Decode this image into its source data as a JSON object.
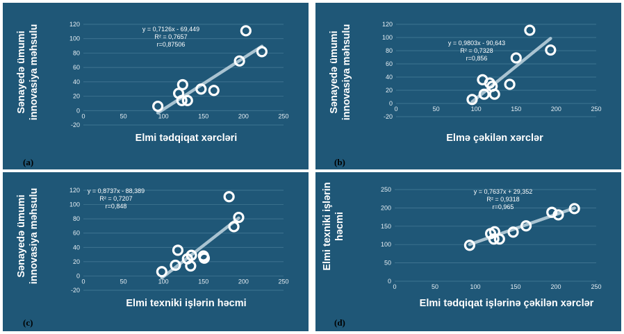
{
  "chart_data": [
    {
      "type": "scatter",
      "panel_label": "(a)",
      "ylabel_lines": [
        "Sənayedə ümumi",
        "innovasiya məhsulu"
      ],
      "xlabel": "Elmi tədqiqat xərcləri",
      "xlim": [
        0,
        250
      ],
      "ylim": [
        -20,
        120
      ],
      "xticks": [
        "0",
        "50",
        "100",
        "150",
        "200",
        "250"
      ],
      "yticks": [
        "-20",
        "0",
        "20",
        "40",
        "60",
        "80",
        "100",
        "120"
      ],
      "trendline": {
        "slope": 0.7126,
        "intercept": -69.449
      },
      "equation": [
        "y = 0,7126x - 69,449",
        "R² = 0,7657",
        "r=0,87506"
      ],
      "points": [
        [
          93,
          6
        ],
        [
          119,
          24
        ],
        [
          123,
          14
        ],
        [
          124,
          36
        ],
        [
          130,
          14
        ],
        [
          147,
          30
        ],
        [
          163,
          28
        ],
        [
          195,
          69
        ],
        [
          203,
          111
        ],
        [
          223,
          82
        ]
      ],
      "colors": {
        "marker": "#ffffff",
        "trend": "#b8cfdb"
      }
    },
    {
      "type": "scatter",
      "panel_label": "(b)",
      "ylabel_lines": [
        "Sənayedə ümumi",
        "innovasiya məhsulu"
      ],
      "xlabel": "Elmə çəkilən xərclər",
      "xlim": [
        0,
        250
      ],
      "ylim": [
        -20,
        120
      ],
      "xticks": [
        "0",
        "50",
        "100",
        "150",
        "200",
        "250"
      ],
      "yticks": [
        "-20",
        "0",
        "20",
        "40",
        "60",
        "80",
        "100",
        "120"
      ],
      "trendline": {
        "slope": 0.9803,
        "intercept": -90.643
      },
      "equation": [
        "y = 0,9803x - 90,643",
        "R² = 0,7328",
        "r=0,856"
      ],
      "points": [
        [
          95,
          6
        ],
        [
          108,
          36
        ],
        [
          110,
          14
        ],
        [
          117,
          31
        ],
        [
          120,
          26
        ],
        [
          123,
          14
        ],
        [
          142,
          29
        ],
        [
          150,
          69
        ],
        [
          167,
          111
        ],
        [
          193,
          81
        ]
      ],
      "colors": {
        "marker": "#ffffff",
        "trend": "#b8cfdb"
      }
    },
    {
      "type": "scatter",
      "panel_label": "(c)",
      "ylabel_lines": [
        "Sənayedə ümumi",
        "innovasiya məhsulu"
      ],
      "xlabel": "Elmi texniki işlərin həcmi",
      "xlim": [
        0,
        250
      ],
      "ylim": [
        -20,
        120
      ],
      "xticks": [
        "0",
        "50",
        "100",
        "150",
        "200",
        "250"
      ],
      "yticks": [
        "-20",
        "0",
        "20",
        "40",
        "60",
        "80",
        "100",
        "120"
      ],
      "trendline": {
        "slope": 0.8737,
        "intercept": -88.389
      },
      "equation": [
        "y = 0,8737x - 88,389",
        "R² = 0,7207",
        "r=0,848"
      ],
      "points": [
        [
          98,
          6
        ],
        [
          115,
          15
        ],
        [
          118,
          36
        ],
        [
          130,
          24
        ],
        [
          134,
          14
        ],
        [
          135,
          29
        ],
        [
          150,
          28
        ],
        [
          151,
          25
        ],
        [
          182,
          111
        ],
        [
          188,
          69
        ],
        [
          194,
          82
        ]
      ],
      "colors": {
        "marker": "#ffffff",
        "trend": "#b8cfdb"
      }
    },
    {
      "type": "scatter",
      "panel_label": "(d)",
      "ylabel_lines": [
        "Elmi texniki işlərin",
        "həcmi"
      ],
      "xlabel": "Elmi tədqiqat işlərinə çəkilən xərclər",
      "xlim": [
        0,
        250
      ],
      "ylim": [
        0,
        250
      ],
      "xticks": [
        "0",
        "50",
        "100",
        "150",
        "200",
        "250"
      ],
      "yticks": [
        "0",
        "50",
        "100",
        "150",
        "200",
        "250"
      ],
      "trendline": {
        "slope": 0.7637,
        "intercept": 29.352
      },
      "equation": [
        "y = 0,7637x + 29,352",
        "R² = 0,9318",
        "r=0,965"
      ],
      "points": [
        [
          93,
          98
        ],
        [
          119,
          130
        ],
        [
          123,
          115
        ],
        [
          124,
          135
        ],
        [
          130,
          115
        ],
        [
          147,
          134
        ],
        [
          163,
          151
        ],
        [
          195,
          188
        ],
        [
          203,
          181
        ],
        [
          223,
          198
        ]
      ],
      "colors": {
        "marker": "#ffffff",
        "trend": "#b8cfdb"
      }
    }
  ]
}
